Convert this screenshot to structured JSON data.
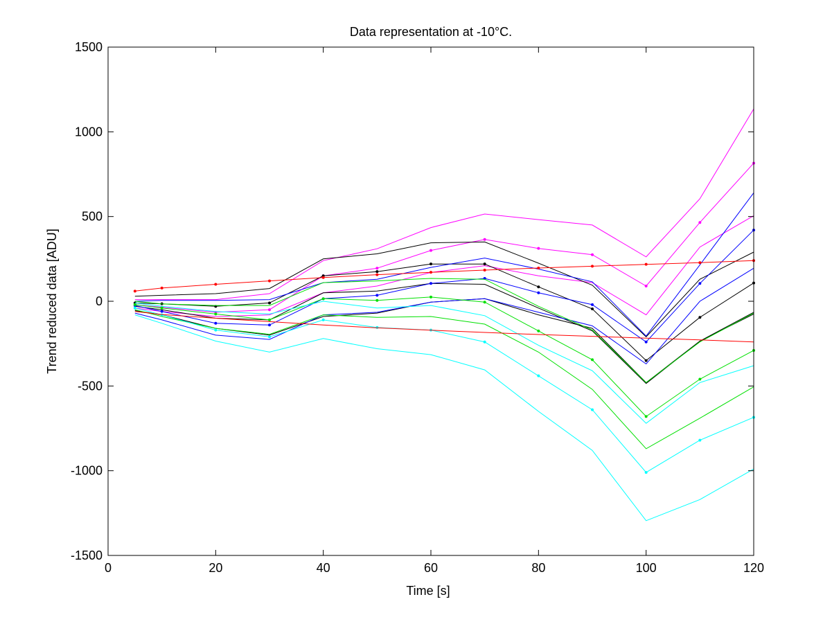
{
  "chart_data": {
    "type": "line",
    "title": "Data representation at -10°C.",
    "xlabel": "Time [s]",
    "ylabel": "Trend reduced data [ADU]",
    "xlim": [
      0,
      120
    ],
    "ylim": [
      -1500,
      1500
    ],
    "xticks": [
      "0",
      "20",
      "40",
      "60",
      "80",
      "100",
      "120"
    ],
    "yticks": [
      "1500",
      "1000",
      "500",
      "0",
      "-500",
      "-1000",
      "-1500"
    ],
    "grid": false,
    "x": [
      5,
      10,
      20,
      30,
      40,
      50,
      60,
      70,
      80,
      90,
      100,
      110,
      120
    ],
    "series": [
      {
        "color": "#ff00ff",
        "markers": false,
        "values": [
          10,
          10,
          10,
          45,
          240,
          310,
          435,
          515,
          482,
          450,
          262,
          605,
          1135
        ]
      },
      {
        "color": "#ff00ff",
        "markers": true,
        "values": [
          -20,
          -35,
          -65,
          -50,
          150,
          195,
          300,
          365,
          312,
          275,
          90,
          465,
          815
        ]
      },
      {
        "color": "#ff00ff",
        "markers": false,
        "values": [
          -40,
          -60,
          -90,
          -80,
          50,
          90,
          170,
          210,
          150,
          110,
          -80,
          320,
          505
        ]
      },
      {
        "color": "#000000",
        "markers": false,
        "values": [
          30,
          35,
          45,
          75,
          250,
          280,
          345,
          350,
          225,
          95,
          -210,
          130,
          290
        ]
      },
      {
        "color": "#000000",
        "markers": true,
        "values": [
          -10,
          -15,
          -30,
          -10,
          150,
          175,
          220,
          220,
          85,
          -45,
          -350,
          -95,
          108
        ]
      },
      {
        "color": "#000000",
        "markers": false,
        "values": [
          -30,
          -50,
          -100,
          -110,
          50,
          60,
          105,
          100,
          -40,
          -175,
          -485,
          -235,
          -75
        ]
      },
      {
        "color": "#000000",
        "markers": false,
        "values": [
          -55,
          -80,
          -160,
          -200,
          -90,
          -70,
          -5,
          15,
          -80,
          -160,
          -480,
          -235,
          -65
        ]
      },
      {
        "color": "#0000ff",
        "markers": false,
        "values": [
          0,
          5,
          5,
          10,
          110,
          130,
          200,
          255,
          190,
          115,
          -205,
          215,
          640
        ]
      },
      {
        "color": "#0000ff",
        "markers": true,
        "values": [
          -25,
          -60,
          -130,
          -140,
          15,
          35,
          105,
          135,
          50,
          -20,
          -240,
          105,
          420
        ]
      },
      {
        "color": "#0000ff",
        "markers": false,
        "values": [
          -70,
          -110,
          -200,
          -225,
          -80,
          -65,
          -5,
          15,
          -65,
          -145,
          -370,
          0,
          195
        ]
      },
      {
        "color": "#00e000",
        "markers": false,
        "values": [
          0,
          -15,
          -25,
          -25,
          110,
          120,
          135,
          130,
          -30,
          -170,
          -480,
          -240,
          -70
        ]
      },
      {
        "color": "#00e000",
        "markers": true,
        "values": [
          -20,
          -40,
          -75,
          -110,
          15,
          5,
          25,
          -5,
          -175,
          -345,
          -680,
          -460,
          -290
        ]
      },
      {
        "color": "#00e000",
        "markers": false,
        "values": [
          -50,
          -90,
          -160,
          -195,
          -80,
          -95,
          -90,
          -135,
          -300,
          -520,
          -870,
          -690,
          -505
        ]
      },
      {
        "color": "#00ffff",
        "markers": false,
        "values": [
          -10,
          -30,
          -60,
          -75,
          0,
          -40,
          -25,
          -85,
          -260,
          -410,
          -720,
          -480,
          -380
        ]
      },
      {
        "color": "#00ffff",
        "markers": true,
        "values": [
          -40,
          -80,
          -170,
          -210,
          -110,
          -155,
          -170,
          -240,
          -440,
          -640,
          -1010,
          -820,
          -685
        ]
      },
      {
        "color": "#00ffff",
        "markers": false,
        "values": [
          -80,
          -130,
          -235,
          -300,
          -220,
          -280,
          -315,
          -405,
          -650,
          -880,
          -1295,
          -1170,
          -990
        ]
      },
      {
        "color": "#ff0000",
        "markers": true,
        "values": [
          60,
          78,
          100,
          120,
          140,
          157,
          171,
          184,
          196,
          207,
          218,
          228,
          240
        ]
      },
      {
        "color": "#ff0000",
        "markers": false,
        "values": [
          -60,
          -78,
          -100,
          -120,
          -140,
          -157,
          -171,
          -184,
          -196,
          -207,
          -218,
          -228,
          -240
        ]
      }
    ]
  }
}
